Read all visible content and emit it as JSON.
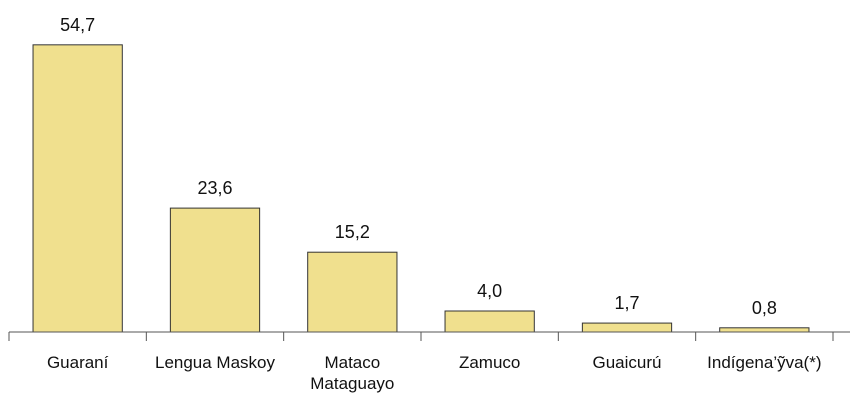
{
  "chart_data": {
    "type": "bar",
    "categories": [
      "Guaraní",
      "Lengua Maskoy",
      "Mataco Mataguayo",
      "Zamuco",
      "Guaicurú",
      "Indígena’ỹva(*)"
    ],
    "values": [
      54.7,
      23.6,
      15.2,
      4.0,
      1.7,
      0.8
    ],
    "value_labels": [
      "54,7",
      "23,6",
      "15,2",
      "4,0",
      "1,7",
      "0,8"
    ],
    "color": "#f0e08e",
    "ylim": [
      0,
      60
    ]
  }
}
